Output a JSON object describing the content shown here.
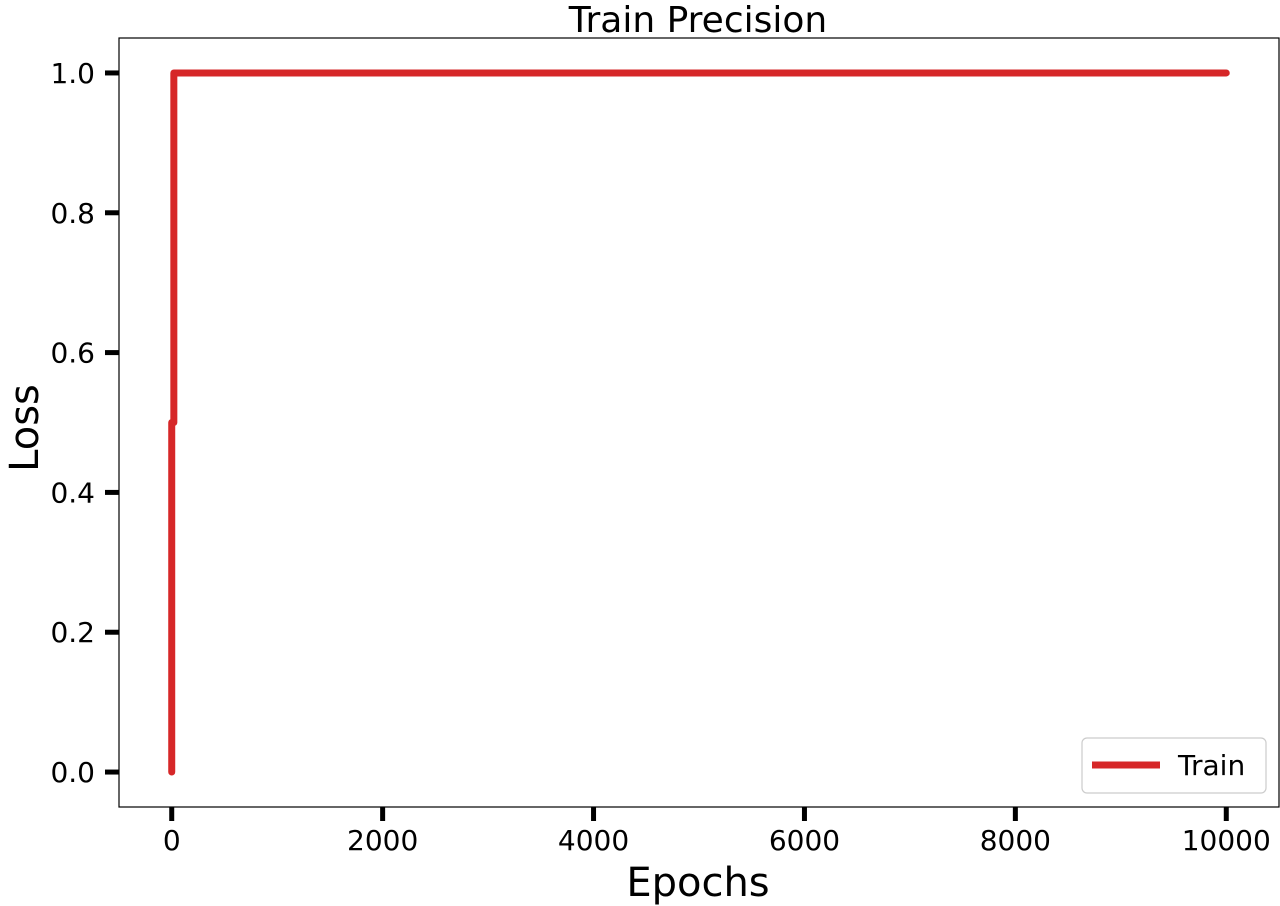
{
  "chart_data": {
    "type": "line",
    "title": "Train Precision",
    "xlabel": "Epochs",
    "ylabel": "Loss",
    "xlim": [
      -500,
      10500
    ],
    "ylim": [
      -0.05,
      1.05
    ],
    "xticks": [
      0,
      2000,
      4000,
      6000,
      8000,
      10000
    ],
    "xtick_labels": [
      "0",
      "2000",
      "4000",
      "6000",
      "8000",
      "10000"
    ],
    "yticks": [
      0.0,
      0.2,
      0.4,
      0.6,
      0.8,
      1.0
    ],
    "ytick_labels": [
      "0.0",
      "0.2",
      "0.4",
      "0.6",
      "0.8",
      "1.0"
    ],
    "grid": false,
    "legend_position": "bottom-right",
    "series": [
      {
        "name": "Train",
        "color": "#d62728",
        "x": [
          0,
          0,
          10,
          20,
          20,
          10000
        ],
        "y": [
          0.0,
          0.5,
          0.5,
          0.5,
          1.0,
          1.0
        ]
      }
    ]
  }
}
